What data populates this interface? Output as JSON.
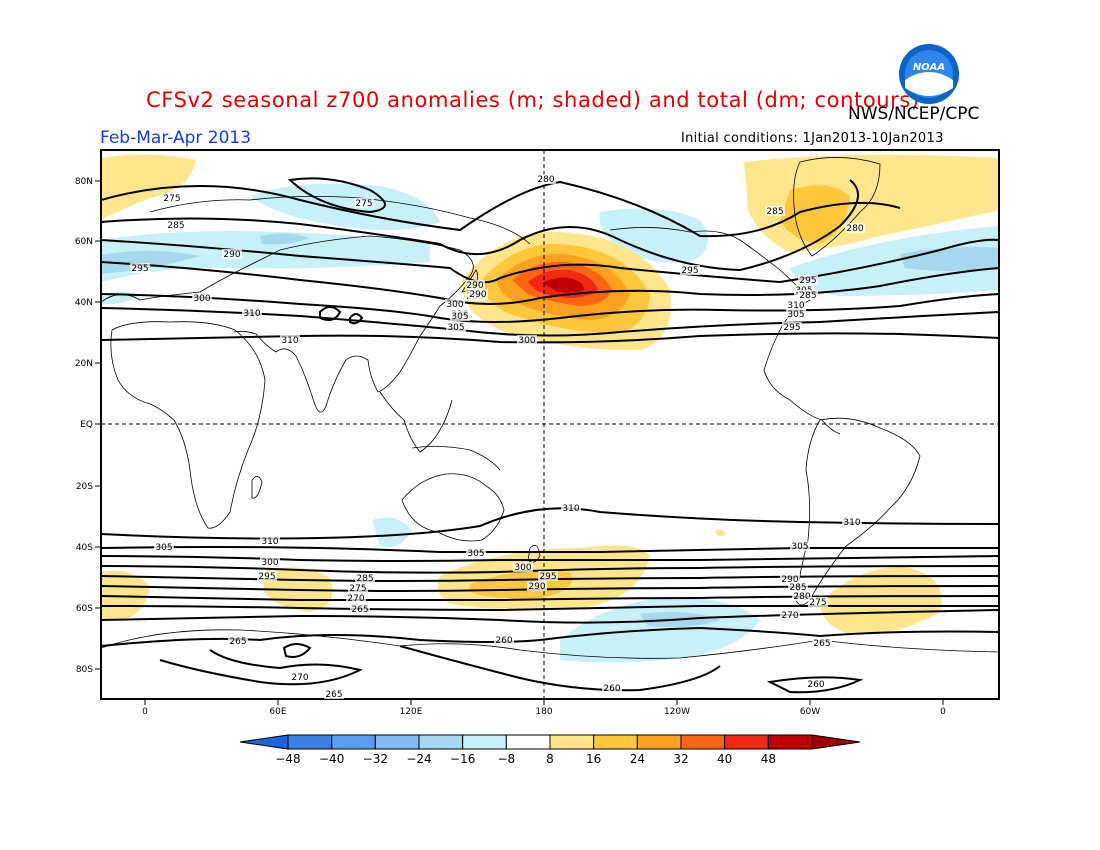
{
  "header": {
    "title": "CFSv2 seasonal z700 anomalies (m; shaded) and total (dm; contours)",
    "org": "NWS/NCEP/CPC",
    "season": "Feb-Mar-Apr 2013",
    "initial_conditions": "Initial conditions: 1Jan2013-10Jan2013",
    "logo_text": "NOAA"
  },
  "axes": {
    "lat_labels": [
      "80N",
      "60N",
      "40N",
      "20N",
      "EQ",
      "20S",
      "40S",
      "60S",
      "80S"
    ],
    "lon_labels": [
      "0",
      "60E",
      "120E",
      "180",
      "120W",
      "60W",
      "0"
    ]
  },
  "contours": {
    "north": [
      "280",
      "275",
      "275",
      "280",
      "285",
      "285",
      "290",
      "290",
      "295",
      "295",
      "285",
      "300",
      "295",
      "290",
      "300",
      "305",
      "305",
      "310",
      "310",
      "310",
      "300",
      "295",
      "285",
      "305",
      "290",
      "305"
    ],
    "south": [
      "310",
      "310",
      "310",
      "305",
      "305",
      "305",
      "300",
      "300",
      "295",
      "295",
      "290",
      "290",
      "285",
      "285",
      "280",
      "275",
      "275",
      "270",
      "270",
      "265",
      "265",
      "265",
      "260",
      "260",
      "260",
      "265",
      "270"
    ]
  },
  "colorbar": {
    "labels": [
      "-48",
      "-40",
      "-32",
      "-24",
      "-16",
      "-8",
      "8",
      "16",
      "24",
      "32",
      "40",
      "48"
    ],
    "colors": [
      "#1e64dc",
      "#3c82e6",
      "#5a9bec",
      "#82b9f0",
      "#a6d8f0",
      "#c8f0f8",
      "#ffffff",
      "#ffe68c",
      "#ffc83c",
      "#ffa01e",
      "#ff6414",
      "#f02814",
      "#be0000",
      "#a00000"
    ]
  }
}
